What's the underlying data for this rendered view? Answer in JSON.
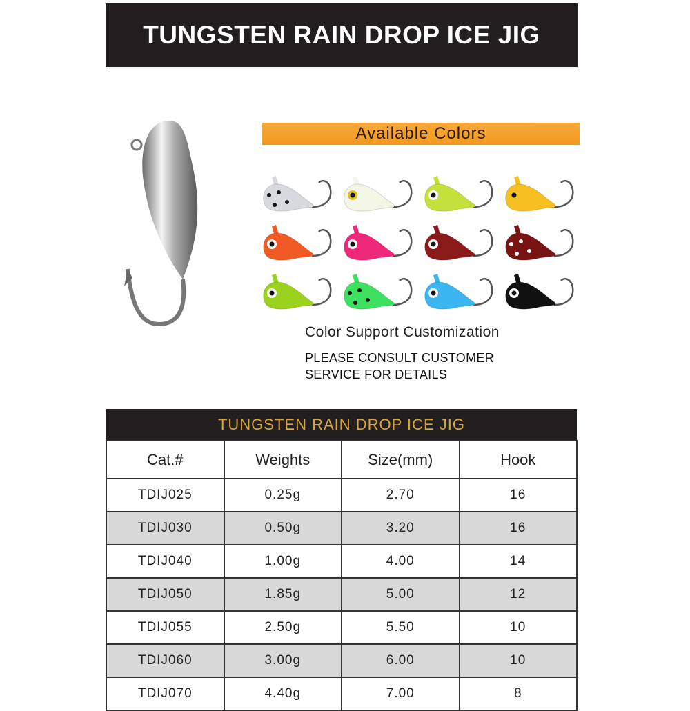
{
  "banner": {
    "title": "TUNGSTEN RAIN DROP ICE JIG"
  },
  "colors_section": {
    "heading": "Available Colors",
    "heading_color": "#f29a1e",
    "jigs": [
      {
        "body": "#d8d9de",
        "eye": "none",
        "dots": true
      },
      {
        "body": "#f4f6e6",
        "eye": "#e0c020",
        "dots": false
      },
      {
        "body": "#c4e03a",
        "eye": "#ffffff",
        "dots": false
      },
      {
        "body": "#f6c020",
        "eye": "#f6c020",
        "dots": false
      },
      {
        "body": "#f15a24",
        "eye": "#ffffff",
        "dots": false
      },
      {
        "body": "#f0287a",
        "eye": "#ffffff",
        "dots": false
      },
      {
        "body": "#8b1a1a",
        "eye": "#ffffff",
        "dots": false
      },
      {
        "body": "#7a1414",
        "eye": "none",
        "dots": true
      },
      {
        "body": "#9ad21e",
        "eye": "#ffffff",
        "dots": false
      },
      {
        "body": "#3ee060",
        "eye": "none",
        "dots": true
      },
      {
        "body": "#3cb6f0",
        "eye": "#ffffff",
        "dots": false
      },
      {
        "body": "#111111",
        "eye": "#ffffff",
        "dots": false
      }
    ],
    "customization": "Color Support Customization",
    "consult_line1": "PLEASE CONSULT CUSTOMER",
    "consult_line2": "SERVICE FOR DETAILS"
  },
  "spec_table": {
    "title": "TUNGSTEN RAIN DROP ICE JIG",
    "title_color": "#d9a537",
    "columns": [
      "Cat.#",
      "Weights",
      "Size(mm)",
      "Hook"
    ],
    "rows": [
      [
        "TDIJ025",
        "0.25g",
        "2.70",
        "16"
      ],
      [
        "TDIJ030",
        "0.50g",
        "3.20",
        "16"
      ],
      [
        "TDIJ040",
        "1.00g",
        "4.00",
        "14"
      ],
      [
        "TDIJ050",
        "1.85g",
        "5.00",
        "12"
      ],
      [
        "TDIJ055",
        "2.50g",
        "5.50",
        "10"
      ],
      [
        "TDIJ060",
        "3.00g",
        "6.00",
        "10"
      ],
      [
        "TDIJ070",
        "4.40g",
        "7.00",
        "8"
      ]
    ]
  }
}
